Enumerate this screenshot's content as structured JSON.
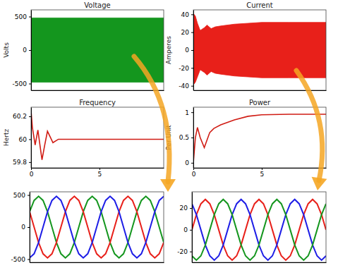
{
  "chart_data": [
    {
      "type": "area",
      "title": "Voltage",
      "y_label": "Volts",
      "x": [
        0,
        9.7
      ],
      "series": [
        {
          "color": "#14961e",
          "values": [
            480,
            480
          ],
          "lower": [
            -480,
            -480
          ]
        }
      ],
      "xlim": [
        0,
        9.7
      ],
      "ylim": [
        -600,
        600
      ],
      "yticks": [
        -500,
        0,
        500
      ],
      "tick_labels": "y"
    },
    {
      "type": "area",
      "title": "Current",
      "y_label": "Amperes",
      "x": [
        0,
        0.05,
        0.15,
        0.3,
        0.5,
        0.8,
        1.0,
        1.3,
        1.6,
        2,
        3,
        4,
        5,
        7,
        9.7
      ],
      "series": [
        {
          "color": "#e8201a",
          "values": [
            5,
            40,
            38,
            30,
            22,
            25,
            28,
            24,
            26,
            27,
            29,
            30,
            31,
            31,
            31
          ],
          "lower": [
            -5,
            -38,
            -36,
            -30,
            -22,
            -25,
            -28,
            -24,
            -26,
            -27,
            -29,
            -30,
            -31,
            -31,
            -31
          ]
        }
      ],
      "xlim": [
        0,
        9.7
      ],
      "ylim": [
        -45,
        45
      ],
      "yticks": [
        -40,
        -20,
        0,
        20,
        40
      ],
      "tick_labels": "y"
    },
    {
      "type": "line",
      "title": "Frequency",
      "y_label": "Hertz",
      "x": [
        0,
        0.1,
        0.3,
        0.5,
        0.65,
        0.8,
        1.0,
        1.2,
        1.4,
        1.6,
        2,
        3,
        9.7
      ],
      "series": [
        {
          "color": "#d01c14",
          "values": [
            60.25,
            60.1,
            59.95,
            60.08,
            59.95,
            59.82,
            59.95,
            60.07,
            60.02,
            59.97,
            60.0,
            60.0,
            60.0
          ]
        }
      ],
      "xlim": [
        0,
        9.7
      ],
      "ylim": [
        59.75,
        60.28
      ],
      "yticks": [
        59.8,
        60,
        60.2
      ],
      "xticks": [
        0,
        5
      ]
    },
    {
      "type": "line",
      "title": "Power",
      "y_label": "Per Unit",
      "x": [
        0,
        0.15,
        0.3,
        0.5,
        0.8,
        1.0,
        1.2,
        1.5,
        2,
        3,
        4,
        5,
        7,
        9.7
      ],
      "series": [
        {
          "color": "#d01c14",
          "values": [
            0,
            0.5,
            0.7,
            0.5,
            0.3,
            0.45,
            0.6,
            0.68,
            0.75,
            0.85,
            0.92,
            0.95,
            0.96,
            0.96
          ]
        }
      ],
      "xlim": [
        0,
        9.7
      ],
      "ylim": [
        -0.1,
        1.1
      ],
      "yticks": [
        0,
        0.5,
        1
      ],
      "xticks": [
        0,
        5
      ]
    },
    {
      "type": "line",
      "x": [
        0,
        1,
        2,
        3,
        4,
        5,
        6,
        7,
        8,
        9,
        10,
        11,
        12,
        13,
        14,
        15,
        16,
        17,
        18,
        19,
        20,
        21,
        22,
        23,
        24,
        25,
        26,
        27,
        28,
        29,
        30
      ],
      "series": [
        {
          "color": "#14961e",
          "values": [
            240,
            416,
            480,
            416,
            240,
            0,
            -240,
            -416,
            -480,
            -416,
            -240,
            0,
            240,
            416,
            480,
            416,
            240,
            0,
            -240,
            -416,
            -480,
            -416,
            -240,
            0,
            240,
            416,
            480,
            416,
            240,
            0,
            -240
          ]
        },
        {
          "color": "#e8201a",
          "values": [
            240,
            0,
            -240,
            -416,
            -480,
            -416,
            -240,
            0,
            240,
            416,
            480,
            416,
            240,
            0,
            -240,
            -416,
            -480,
            -416,
            -240,
            0,
            240,
            416,
            480,
            416,
            240,
            0,
            -240,
            -416,
            -480,
            -416,
            -240
          ]
        },
        {
          "color": "#1e1ee6",
          "values": [
            -480,
            -416,
            -240,
            0,
            240,
            416,
            480,
            416,
            240,
            0,
            -240,
            -416,
            -480,
            -416,
            -240,
            0,
            240,
            416,
            480,
            416,
            240,
            0,
            -240,
            -416,
            -480,
            -416,
            -240,
            0,
            240,
            416,
            480
          ]
        }
      ],
      "xlim": [
        0,
        30
      ],
      "ylim": [
        -550,
        550
      ],
      "yticks": [
        -500,
        0,
        500
      ],
      "tick_labels": "y"
    },
    {
      "type": "line",
      "x": [
        0,
        1,
        2,
        3,
        4,
        5,
        6,
        7,
        8,
        9,
        10,
        11,
        12,
        13,
        14,
        15,
        16,
        17,
        18,
        19,
        20,
        21,
        22,
        23,
        24,
        25,
        26,
        27,
        28,
        29,
        30
      ],
      "series": [
        {
          "color": "#e8201a",
          "values": [
            0,
            14,
            24,
            28,
            24,
            14,
            0,
            -14,
            -24,
            -28,
            -24,
            -14,
            0,
            14,
            24,
            28,
            24,
            14,
            0,
            -14,
            -24,
            -28,
            -24,
            -14,
            0,
            14,
            24,
            28,
            24,
            14,
            0
          ]
        },
        {
          "color": "#1e1ee6",
          "values": [
            24,
            14,
            0,
            -14,
            -24,
            -28,
            -24,
            -14,
            0,
            14,
            24,
            28,
            24,
            14,
            0,
            -14,
            -24,
            -28,
            -24,
            -14,
            0,
            14,
            24,
            28,
            24,
            14,
            0,
            -14,
            -24,
            -28,
            -24
          ]
        },
        {
          "color": "#14961e",
          "values": [
            -24,
            -28,
            -24,
            -14,
            0,
            14,
            24,
            28,
            24,
            14,
            0,
            -14,
            -24,
            -28,
            -24,
            -14,
            0,
            14,
            24,
            28,
            24,
            14,
            0,
            -14,
            -24,
            -28,
            -24,
            -14,
            0,
            14,
            24
          ]
        }
      ],
      "xlim": [
        0,
        30
      ],
      "ylim": [
        -30,
        35
      ],
      "yticks": [
        -20,
        0,
        20
      ],
      "tick_labels": "y"
    }
  ]
}
